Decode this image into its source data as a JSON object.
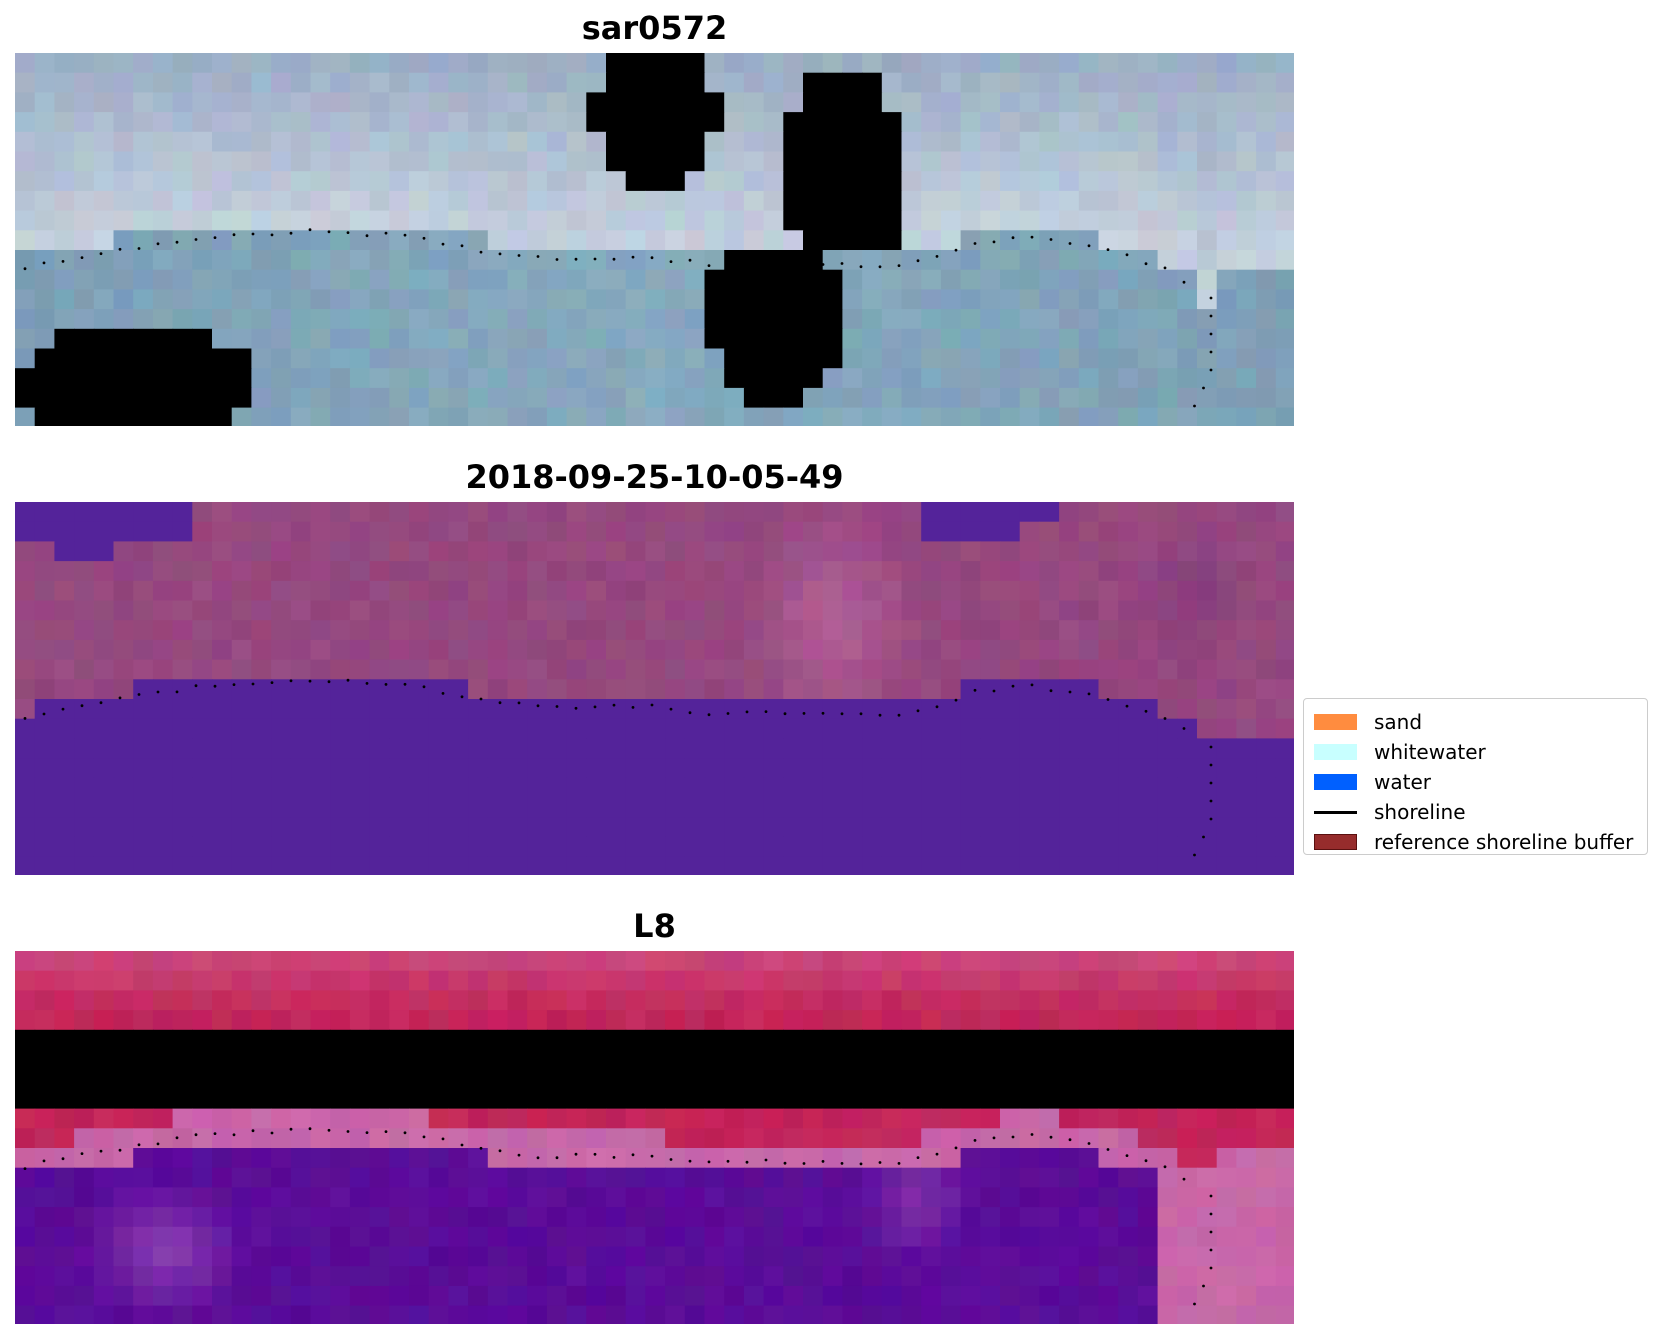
{
  "panels": [
    {
      "title": "sar0572",
      "palette": {
        "top": "#9aadc4",
        "bright": "#e6ecf2",
        "cloud": "#f5f6f8",
        "water": "#86a9bd",
        "deep": "#7d9fb6",
        "light": "#a5c4cf"
      }
    },
    {
      "title": "2018-09-25-10-05-49",
      "palette": {
        "land": "#95487f",
        "land_light": "#b4609a",
        "land_dark": "#87407a",
        "water": "#54239a"
      }
    },
    {
      "title": "L8",
      "palette": {
        "land": "#c2265a",
        "land_dark": "#b70f3f",
        "land_light": "#cc4a7e",
        "band": "#c867a8",
        "water": "#5a0c98",
        "water_light": "#8b3fb0"
      }
    }
  ],
  "legend": {
    "items": [
      {
        "label": "sand",
        "type": "patch",
        "color": "#ff8c3f"
      },
      {
        "label": "whitewater",
        "type": "patch",
        "color": "#c8ffff"
      },
      {
        "label": "water",
        "type": "patch",
        "color": "#0060ff"
      },
      {
        "label": "shoreline",
        "type": "line",
        "color": "#000000"
      },
      {
        "label": "reference shoreline buffer",
        "type": "patch",
        "color": "#962c2c",
        "edge": "#5a1010"
      }
    ]
  }
}
